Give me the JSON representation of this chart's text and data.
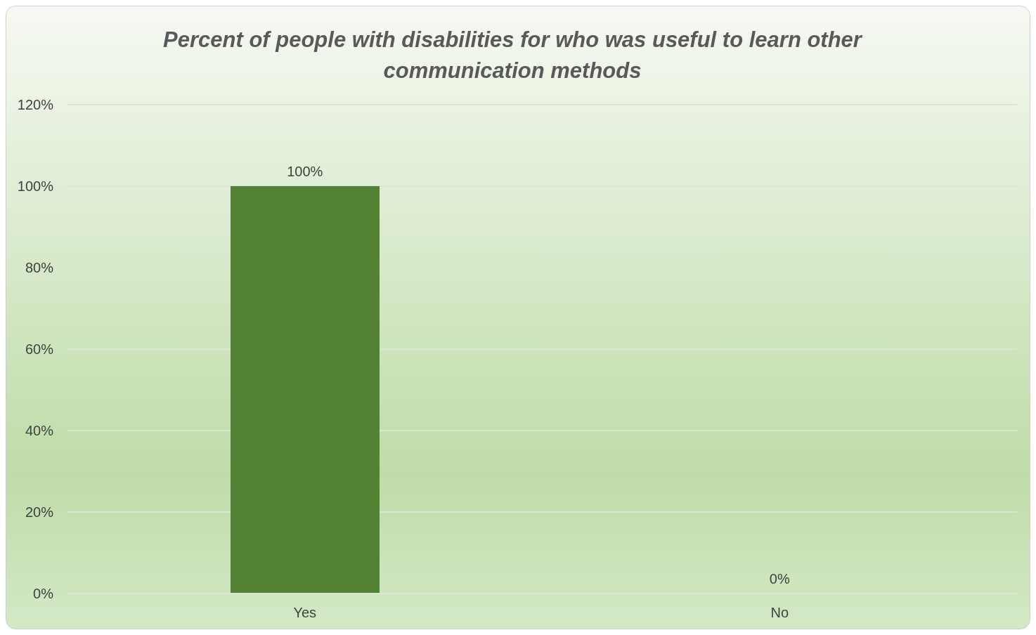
{
  "chart_data": {
    "type": "bar",
    "title": "Percent of people with disabilities for who was useful to learn other communication methods",
    "categories": [
      "Yes",
      "No"
    ],
    "values": [
      100,
      0
    ],
    "value_labels": [
      "100%",
      "0%"
    ],
    "color": "#548235",
    "ylim": [
      0,
      120
    ],
    "yticks": [
      {
        "value": 0,
        "label": "0%"
      },
      {
        "value": 20,
        "label": "20%"
      },
      {
        "value": 40,
        "label": "40%"
      },
      {
        "value": 60,
        "label": "60%"
      },
      {
        "value": 80,
        "label": "80%"
      },
      {
        "value": 100,
        "label": "100%"
      },
      {
        "value": 120,
        "label": "120%"
      }
    ],
    "grid": "y"
  }
}
